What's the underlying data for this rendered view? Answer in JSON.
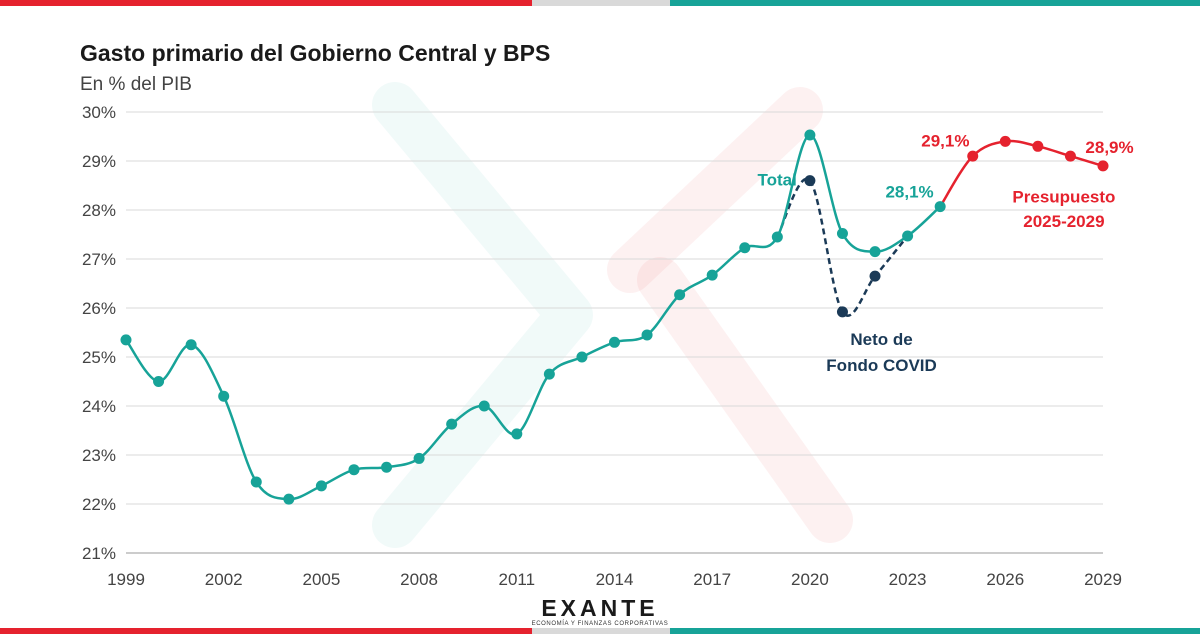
{
  "colors": {
    "total": "#17a398",
    "covid": "#1b3a57",
    "budget": "#e5222e",
    "bar_red": "#e5222e",
    "bar_gray": "#d9d9d9",
    "bar_teal": "#17a398"
  },
  "chart_data": {
    "type": "line",
    "title": "Gasto primario del Gobierno Central y BPS",
    "subtitle": "En % del PIB",
    "x_ticks": [
      "1999",
      "2002",
      "2005",
      "2008",
      "2011",
      "2014",
      "2017",
      "2020",
      "2023",
      "2026",
      "2029"
    ],
    "y_ticks": [
      "21%",
      "22%",
      "23%",
      "24%",
      "25%",
      "26%",
      "27%",
      "28%",
      "29%",
      "30%"
    ],
    "ylim": [
      21,
      30
    ],
    "xlim": [
      1999,
      2029
    ],
    "grid": true,
    "series": [
      {
        "name": "Total",
        "color": "#17a398",
        "style": "solid",
        "points": [
          [
            1999,
            25.35
          ],
          [
            2000,
            24.5
          ],
          [
            2001,
            25.25
          ],
          [
            2002,
            24.2
          ],
          [
            2003,
            22.45
          ],
          [
            2004,
            22.1
          ],
          [
            2005,
            22.37
          ],
          [
            2006,
            22.7
          ],
          [
            2007,
            22.75
          ],
          [
            2008,
            22.93
          ],
          [
            2009,
            23.63
          ],
          [
            2010,
            24.0
          ],
          [
            2011,
            23.43
          ],
          [
            2012,
            24.65
          ],
          [
            2013,
            25.0
          ],
          [
            2014,
            25.3
          ],
          [
            2015,
            25.45
          ],
          [
            2016,
            26.27
          ],
          [
            2017,
            26.67
          ],
          [
            2018,
            27.23
          ],
          [
            2019,
            27.45
          ],
          [
            2020,
            29.53
          ],
          [
            2021,
            27.52
          ],
          [
            2022,
            27.15
          ],
          [
            2023,
            27.47
          ],
          [
            2024,
            28.07
          ]
        ]
      },
      {
        "name": "Neto de Fondo COVID",
        "color": "#1b3a57",
        "style": "dashed",
        "points": [
          [
            2019,
            27.45
          ],
          [
            2020,
            28.6
          ],
          [
            2021,
            25.92
          ],
          [
            2022,
            26.65
          ],
          [
            2023,
            27.47
          ]
        ]
      },
      {
        "name": "Presupuesto 2025-2029",
        "color": "#e5222e",
        "style": "solid",
        "points": [
          [
            2024,
            28.07
          ],
          [
            2025,
            29.1
          ],
          [
            2026,
            29.4
          ],
          [
            2027,
            29.3
          ],
          [
            2028,
            29.1
          ],
          [
            2029,
            28.9
          ]
        ]
      }
    ],
    "annotations": [
      {
        "text": "Total",
        "color": "#17a398"
      },
      {
        "text": "28,1%",
        "color": "#17a398"
      },
      {
        "text": "Neto de",
        "color": "#1b3a57"
      },
      {
        "text": "Fondo COVID",
        "color": "#1b3a57"
      },
      {
        "text": "29,1%",
        "color": "#e5222e"
      },
      {
        "text": "28,9%",
        "color": "#e5222e"
      },
      {
        "text": "Presupuesto",
        "color": "#e5222e"
      },
      {
        "text": "2025-2029",
        "color": "#e5222e"
      }
    ]
  },
  "logo": {
    "word": "EXANTE",
    "tagline": "ECONOMÍA Y FINANZAS CORPORATIVAS"
  }
}
